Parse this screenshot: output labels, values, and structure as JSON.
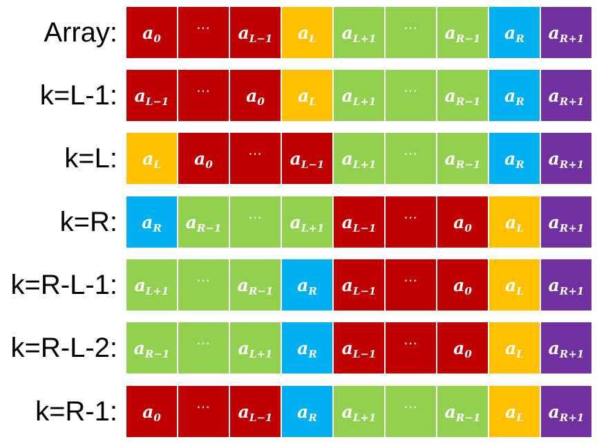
{
  "colors": {
    "red": "#c00000",
    "orange": "#ffc000",
    "green": "#92d050",
    "blue": "#00b0f0",
    "purple": "#7030a0"
  },
  "rows": [
    {
      "label": "Array:",
      "cells": [
        {
          "base": "a",
          "sub": "0",
          "color": "red"
        },
        {
          "text": "⋯",
          "color": "red"
        },
        {
          "base": "a",
          "sub": "L−1",
          "color": "red"
        },
        {
          "base": "a",
          "sub": "L",
          "color": "orange"
        },
        {
          "base": "a",
          "sub": "L+1",
          "color": "green"
        },
        {
          "text": "⋯",
          "color": "green"
        },
        {
          "base": "a",
          "sub": "R−1",
          "color": "green"
        },
        {
          "base": "a",
          "sub": "R",
          "color": "blue"
        },
        {
          "base": "a",
          "sub": "R+1",
          "color": "purple"
        }
      ]
    },
    {
      "label": "k=L-1:",
      "cells": [
        {
          "base": "a",
          "sub": "L−1",
          "color": "red"
        },
        {
          "text": "⋯",
          "color": "red"
        },
        {
          "base": "a",
          "sub": "0",
          "color": "red"
        },
        {
          "base": "a",
          "sub": "L",
          "color": "orange"
        },
        {
          "base": "a",
          "sub": "L+1",
          "color": "green"
        },
        {
          "text": "⋯",
          "color": "green"
        },
        {
          "base": "a",
          "sub": "R−1",
          "color": "green"
        },
        {
          "base": "a",
          "sub": "R",
          "color": "blue"
        },
        {
          "base": "a",
          "sub": "R+1",
          "color": "purple"
        }
      ]
    },
    {
      "label": "k=L:",
      "cells": [
        {
          "base": "a",
          "sub": "L",
          "color": "orange"
        },
        {
          "base": "a",
          "sub": "0",
          "color": "red"
        },
        {
          "text": "⋯",
          "color": "red"
        },
        {
          "base": "a",
          "sub": "L−1",
          "color": "red"
        },
        {
          "base": "a",
          "sub": "L+1",
          "color": "green"
        },
        {
          "text": "⋯",
          "color": "green"
        },
        {
          "base": "a",
          "sub": "R−1",
          "color": "green"
        },
        {
          "base": "a",
          "sub": "R",
          "color": "blue"
        },
        {
          "base": "a",
          "sub": "R+1",
          "color": "purple"
        }
      ]
    },
    {
      "label": "k=R:",
      "cells": [
        {
          "base": "a",
          "sub": "R",
          "color": "blue"
        },
        {
          "base": "a",
          "sub": "R−1",
          "color": "green"
        },
        {
          "text": "⋯",
          "color": "green"
        },
        {
          "base": "a",
          "sub": "L+1",
          "color": "green"
        },
        {
          "base": "a",
          "sub": "L−1",
          "color": "red"
        },
        {
          "text": "⋯",
          "color": "red"
        },
        {
          "base": "a",
          "sub": "0",
          "color": "red"
        },
        {
          "base": "a",
          "sub": "L",
          "color": "orange"
        },
        {
          "base": "a",
          "sub": "R+1",
          "color": "purple"
        }
      ]
    },
    {
      "label": "k=R-L-1:",
      "cells": [
        {
          "base": "a",
          "sub": "L+1",
          "color": "green"
        },
        {
          "text": "⋯",
          "color": "green"
        },
        {
          "base": "a",
          "sub": "R−1",
          "color": "green"
        },
        {
          "base": "a",
          "sub": "R",
          "color": "blue"
        },
        {
          "base": "a",
          "sub": "L−1",
          "color": "red"
        },
        {
          "text": "⋯",
          "color": "red"
        },
        {
          "base": "a",
          "sub": "0",
          "color": "red"
        },
        {
          "base": "a",
          "sub": "L",
          "color": "orange"
        },
        {
          "base": "a",
          "sub": "R+1",
          "color": "purple"
        }
      ]
    },
    {
      "label": "k=R-L-2:",
      "cells": [
        {
          "base": "a",
          "sub": "R−1",
          "color": "green"
        },
        {
          "text": "⋯",
          "color": "green"
        },
        {
          "base": "a",
          "sub": "L+1",
          "color": "green"
        },
        {
          "base": "a",
          "sub": "R",
          "color": "blue"
        },
        {
          "base": "a",
          "sub": "L−1",
          "color": "red"
        },
        {
          "text": "⋯",
          "color": "red"
        },
        {
          "base": "a",
          "sub": "0",
          "color": "red"
        },
        {
          "base": "a",
          "sub": "L",
          "color": "orange"
        },
        {
          "base": "a",
          "sub": "R+1",
          "color": "purple"
        }
      ]
    },
    {
      "label": "k=R-1:",
      "cells": [
        {
          "base": "a",
          "sub": "0",
          "color": "red"
        },
        {
          "text": "⋯",
          "color": "red"
        },
        {
          "base": "a",
          "sub": "L−1",
          "color": "red"
        },
        {
          "base": "a",
          "sub": "R",
          "color": "blue"
        },
        {
          "base": "a",
          "sub": "L+1",
          "color": "green"
        },
        {
          "text": "⋯",
          "color": "green"
        },
        {
          "base": "a",
          "sub": "R−1",
          "color": "green"
        },
        {
          "base": "a",
          "sub": "L",
          "color": "orange"
        },
        {
          "base": "a",
          "sub": "R+1",
          "color": "purple"
        }
      ]
    }
  ]
}
